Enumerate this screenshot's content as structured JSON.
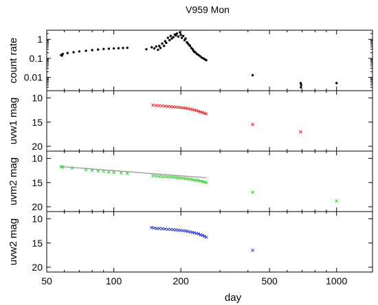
{
  "title": "V959 Mon",
  "colors": {
    "countrate": "#000000",
    "uvw1": "#e02020",
    "uvm2": "#2ecc2e",
    "uvw2": "#1f2fd0",
    "fit_line": "#999999"
  },
  "chart_data": [
    {
      "type": "scatter",
      "panel": "countrate",
      "ylabel": "count rate",
      "xscale": "log",
      "yscale": "log",
      "ylim": [
        0.002,
        3
      ],
      "yticks": [
        {
          "value": 1,
          "label": "1"
        },
        {
          "value": 0.1,
          "label": "0.1"
        },
        {
          "value": 0.01,
          "label": "0.01"
        }
      ],
      "series": [
        {
          "marker": "dot",
          "x": [
            58,
            58.5,
            59,
            62,
            66,
            70,
            75,
            80,
            85,
            90,
            95,
            100,
            105,
            110,
            115,
            140,
            148,
            152,
            155,
            158,
            160,
            162,
            165,
            168,
            170,
            172,
            175,
            178,
            180,
            182,
            185,
            188,
            190,
            192,
            195,
            198,
            200,
            202,
            205,
            208,
            210,
            213,
            215,
            218,
            220,
            223,
            226,
            228,
            230,
            233,
            236,
            240,
            244,
            248,
            252,
            256,
            260,
            420,
            690,
            692,
            694,
            1000
          ],
          "y": [
            0.15,
            0.14,
            0.17,
            0.19,
            0.21,
            0.23,
            0.25,
            0.27,
            0.29,
            0.31,
            0.32,
            0.33,
            0.34,
            0.35,
            0.36,
            0.3,
            0.38,
            0.33,
            0.42,
            0.28,
            0.45,
            0.35,
            0.6,
            0.45,
            0.8,
            0.65,
            1.2,
            0.9,
            1.5,
            1.1,
            1.3,
            1.8,
            1.6,
            2.0,
            1.4,
            2.3,
            1.7,
            1.2,
            1.5,
            0.9,
            1.1,
            0.7,
            0.6,
            0.5,
            0.45,
            0.35,
            0.3,
            0.25,
            0.22,
            0.2,
            0.17,
            0.15,
            0.13,
            0.11,
            0.1,
            0.09,
            0.08,
            0.013,
            0.005,
            0.003,
            0.004,
            0.005
          ]
        }
      ]
    },
    {
      "type": "scatter",
      "panel": "uvw1",
      "ylabel": "uvw1 mag",
      "xscale": "log",
      "ylim": [
        21,
        8.5
      ],
      "yticks": [
        {
          "value": 10,
          "label": "10"
        },
        {
          "value": 15,
          "label": "15"
        },
        {
          "value": 20,
          "label": "20"
        }
      ],
      "series": [
        {
          "marker": "x",
          "x": [
            150,
            155,
            160,
            165,
            170,
            175,
            180,
            185,
            190,
            195,
            200,
            205,
            210,
            215,
            220,
            225,
            230,
            235,
            240,
            245,
            250,
            255,
            260,
            420,
            690
          ],
          "y": [
            11.5,
            11.55,
            11.6,
            11.65,
            11.7,
            11.75,
            11.8,
            11.85,
            11.9,
            11.95,
            12.0,
            12.05,
            12.1,
            12.2,
            12.3,
            12.4,
            12.5,
            12.6,
            12.75,
            12.9,
            13.0,
            13.15,
            13.3,
            15.5,
            17.0
          ]
        }
      ]
    },
    {
      "type": "scatter",
      "panel": "uvm2",
      "ylabel": "uvm2 mag",
      "xscale": "log",
      "ylim": [
        21,
        8.5
      ],
      "yticks": [
        {
          "value": 10,
          "label": "10"
        },
        {
          "value": 15,
          "label": "15"
        },
        {
          "value": 20,
          "label": "20"
        }
      ],
      "fit_line": {
        "x": [
          58,
          260
        ],
        "y": [
          11.7,
          14.0
        ]
      },
      "series": [
        {
          "marker": "x",
          "x": [
            58,
            59,
            65,
            75,
            80,
            85,
            90,
            95,
            100,
            108,
            115,
            150,
            155,
            160,
            165,
            170,
            175,
            180,
            185,
            190,
            195,
            200,
            205,
            210,
            215,
            220,
            225,
            230,
            235,
            240,
            245,
            250,
            255,
            260,
            420,
            1000
          ],
          "y": [
            11.7,
            11.8,
            12.0,
            12.3,
            12.5,
            12.6,
            12.7,
            12.85,
            12.9,
            13.0,
            13.1,
            13.6,
            13.65,
            13.7,
            13.75,
            13.8,
            13.8,
            13.85,
            13.9,
            13.95,
            14.0,
            14.05,
            14.1,
            14.2,
            14.25,
            14.3,
            14.4,
            14.5,
            14.55,
            14.6,
            14.7,
            14.8,
            14.9,
            15.0,
            17.0,
            18.8
          ]
        }
      ]
    },
    {
      "type": "scatter",
      "panel": "uvw2",
      "ylabel": "uvw2 mag",
      "xscale": "log",
      "xlabel": "day",
      "xlim": [
        50,
        1450
      ],
      "xticks": [
        {
          "value": 50,
          "label": "50"
        },
        {
          "value": 100,
          "label": "100"
        },
        {
          "value": 200,
          "label": "200"
        },
        {
          "value": 500,
          "label": "500"
        },
        {
          "value": 1000,
          "label": "1000"
        }
      ],
      "ylim": [
        21,
        8.5
      ],
      "yticks": [
        {
          "value": 10,
          "label": "10"
        },
        {
          "value": 15,
          "label": "15"
        },
        {
          "value": 20,
          "label": "20"
        }
      ],
      "series": [
        {
          "marker": "x",
          "x": [
            148,
            152,
            156,
            160,
            165,
            170,
            175,
            180,
            185,
            190,
            195,
            200,
            205,
            210,
            215,
            220,
            225,
            230,
            235,
            240,
            245,
            250,
            255,
            260,
            420
          ],
          "y": [
            11.8,
            11.9,
            12.0,
            12.0,
            12.05,
            12.1,
            12.15,
            12.2,
            12.25,
            12.3,
            12.35,
            12.4,
            12.45,
            12.5,
            12.6,
            12.7,
            12.8,
            12.9,
            13.0,
            13.1,
            13.3,
            13.4,
            13.6,
            13.8,
            16.5
          ]
        }
      ]
    }
  ]
}
